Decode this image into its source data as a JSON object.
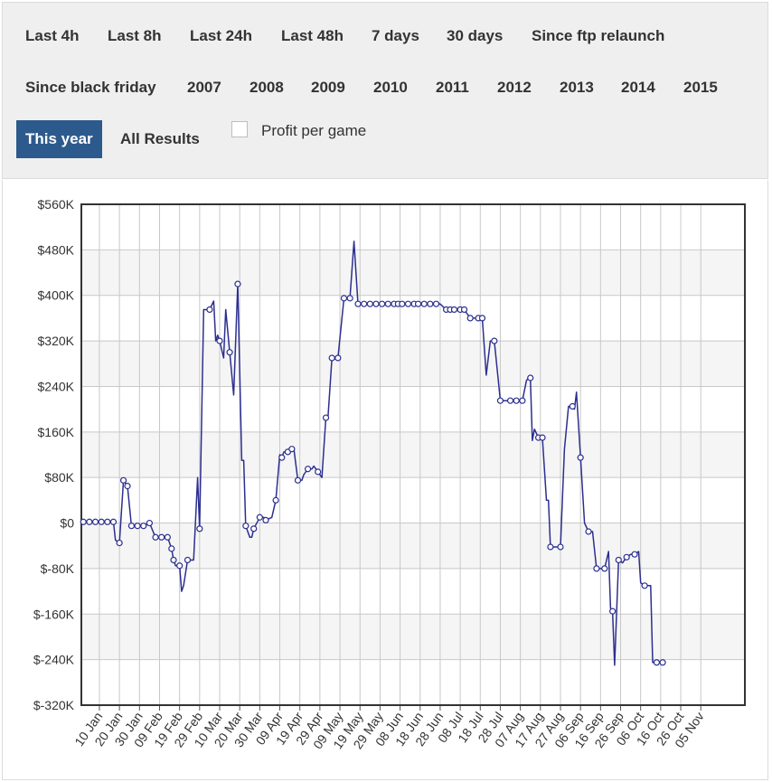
{
  "filters": {
    "row1": [
      "Last 4h",
      "Last 8h",
      "Last 24h",
      "Last 48h",
      "7 days",
      "30 days",
      "Since ftp relaunch"
    ],
    "row2": [
      "Since black friday",
      "2007",
      "2008",
      "2009",
      "2010",
      "2011",
      "2012",
      "2013",
      "2014",
      "2015"
    ],
    "active": "This year",
    "all_results": "All Results",
    "profit_per_game": "Profit per game"
  },
  "chart_data": {
    "type": "line",
    "y_labels": [
      "$560K",
      "$480K",
      "$400K",
      "$320K",
      "$240K",
      "$160K",
      "$80K",
      "$0",
      "$-80K",
      "$-160K",
      "$-240K",
      "$-320K"
    ],
    "ylim": [
      -320000,
      560000
    ],
    "x_labels": [
      "10 Jan",
      "20 Jan",
      "30 Jan",
      "09 Feb",
      "19 Feb",
      "29 Feb",
      "10 Mar",
      "20 Mar",
      "30 Mar",
      "09 Apr",
      "19 Apr",
      "29 Apr",
      "09 May",
      "19 May",
      "29 May",
      "08 Jun",
      "18 Jun",
      "28 Jun",
      "08 Jul",
      "18 Jul",
      "28 Jul",
      "07 Aug",
      "17 Aug",
      "27 Aug",
      "06 Sep",
      "16 Sep",
      "26 Sep",
      "06 Oct",
      "16 Oct",
      "26 Oct",
      "05 Nov"
    ],
    "xlim": [
      1,
      332
    ],
    "grid": true,
    "line_color": "#2c2f8f",
    "series": [
      {
        "points": [
          [
            2,
            2000
          ],
          [
            5,
            2000
          ],
          [
            8,
            2000
          ],
          [
            11,
            2000
          ],
          [
            14,
            2000
          ],
          [
            17,
            2000
          ],
          [
            18,
            -30000
          ],
          [
            20,
            -35000
          ],
          [
            22,
            75000
          ],
          [
            24,
            65000
          ],
          [
            26,
            -5000
          ],
          [
            29,
            -5000
          ],
          [
            32,
            -5000
          ],
          [
            35,
            0
          ],
          [
            38,
            -25000
          ],
          [
            41,
            -25000
          ],
          [
            44,
            -25000
          ],
          [
            46,
            -45000
          ],
          [
            47,
            -65000
          ],
          [
            48,
            -75000
          ],
          [
            50,
            -75000
          ],
          [
            51,
            -120000
          ],
          [
            52,
            -110000
          ],
          [
            54,
            -65000
          ],
          [
            57,
            -65000
          ],
          [
            59,
            80000
          ],
          [
            60,
            -10000
          ],
          [
            62,
            375000
          ],
          [
            65,
            375000
          ],
          [
            67,
            390000
          ],
          [
            68,
            320000
          ],
          [
            69,
            330000
          ],
          [
            70,
            320000
          ],
          [
            72,
            290000
          ],
          [
            73,
            375000
          ],
          [
            75,
            300000
          ],
          [
            77,
            225000
          ],
          [
            79,
            420000
          ],
          [
            81,
            110000
          ],
          [
            82,
            110000
          ],
          [
            83,
            -5000
          ],
          [
            85,
            -25000
          ],
          [
            86,
            -25000
          ],
          [
            87,
            -10000
          ],
          [
            90,
            10000
          ],
          [
            92,
            10000
          ],
          [
            93,
            5000
          ],
          [
            96,
            10000
          ],
          [
            98,
            40000
          ],
          [
            100,
            120000
          ],
          [
            101,
            115000
          ],
          [
            102,
            125000
          ],
          [
            104,
            125000
          ],
          [
            106,
            130000
          ],
          [
            107,
            130000
          ],
          [
            109,
            75000
          ],
          [
            111,
            75000
          ],
          [
            112,
            85000
          ],
          [
            114,
            95000
          ],
          [
            116,
            95000
          ],
          [
            117,
            100000
          ],
          [
            119,
            90000
          ],
          [
            121,
            80000
          ],
          [
            123,
            185000
          ],
          [
            124,
            185000
          ],
          [
            126,
            290000
          ],
          [
            129,
            290000
          ],
          [
            132,
            395000
          ],
          [
            135,
            395000
          ],
          [
            137,
            495000
          ],
          [
            139,
            385000
          ],
          [
            142,
            385000
          ],
          [
            145,
            385000
          ],
          [
            148,
            385000
          ],
          [
            151,
            385000
          ],
          [
            154,
            385000
          ],
          [
            157,
            385000
          ],
          [
            159,
            385000
          ],
          [
            161,
            385000
          ],
          [
            164,
            385000
          ],
          [
            167,
            385000
          ],
          [
            169,
            385000
          ],
          [
            172,
            385000
          ],
          [
            175,
            385000
          ],
          [
            178,
            385000
          ],
          [
            180,
            385000
          ],
          [
            183,
            375000
          ],
          [
            185,
            375000
          ],
          [
            187,
            375000
          ],
          [
            190,
            375000
          ],
          [
            192,
            375000
          ],
          [
            195,
            360000
          ],
          [
            197,
            360000
          ],
          [
            199,
            360000
          ],
          [
            201,
            360000
          ],
          [
            203,
            260000
          ],
          [
            205,
            320000
          ],
          [
            207,
            320000
          ],
          [
            210,
            215000
          ],
          [
            212,
            215000
          ],
          [
            215,
            215000
          ],
          [
            218,
            215000
          ],
          [
            221,
            215000
          ],
          [
            223,
            250000
          ],
          [
            224,
            255000
          ],
          [
            225,
            255000
          ],
          [
            226,
            145000
          ],
          [
            227,
            165000
          ],
          [
            229,
            150000
          ],
          [
            231,
            150000
          ],
          [
            233,
            40000
          ],
          [
            234,
            40000
          ],
          [
            235,
            -42000
          ],
          [
            238,
            -42000
          ],
          [
            240,
            -42000
          ],
          [
            242,
            130000
          ],
          [
            244,
            205000
          ],
          [
            246,
            205000
          ],
          [
            247,
            200000
          ],
          [
            248,
            230000
          ],
          [
            250,
            115000
          ],
          [
            252,
            0
          ],
          [
            254,
            -15000
          ],
          [
            256,
            -15000
          ],
          [
            258,
            -80000
          ],
          [
            260,
            -80000
          ],
          [
            262,
            -80000
          ],
          [
            264,
            -50000
          ],
          [
            265,
            -150000
          ],
          [
            266,
            -155000
          ],
          [
            267,
            -250000
          ],
          [
            269,
            -65000
          ],
          [
            271,
            -70000
          ],
          [
            273,
            -60000
          ],
          [
            275,
            -55000
          ],
          [
            276,
            -55000
          ],
          [
            277,
            -55000
          ],
          [
            279,
            -50000
          ],
          [
            280,
            -105000
          ],
          [
            282,
            -110000
          ],
          [
            285,
            -110000
          ],
          [
            286,
            -245000
          ],
          [
            288,
            -245000
          ],
          [
            291,
            -245000
          ]
        ],
        "markers": [
          2,
          5,
          8,
          11,
          14,
          17,
          20,
          22,
          24,
          26,
          29,
          32,
          35,
          38,
          41,
          44,
          46,
          47,
          50,
          54,
          60,
          65,
          70,
          75,
          79,
          83,
          87,
          90,
          93,
          98,
          101,
          104,
          106,
          109,
          114,
          119,
          123,
          126,
          129,
          132,
          135,
          139,
          142,
          145,
          148,
          151,
          154,
          157,
          159,
          161,
          164,
          167,
          169,
          172,
          175,
          178,
          183,
          185,
          187,
          190,
          192,
          195,
          199,
          201,
          207,
          210,
          215,
          218,
          221,
          225,
          229,
          231,
          235,
          240,
          246,
          250,
          254,
          258,
          262,
          266,
          269,
          273,
          277,
          282,
          288,
          291
        ]
      }
    ]
  }
}
